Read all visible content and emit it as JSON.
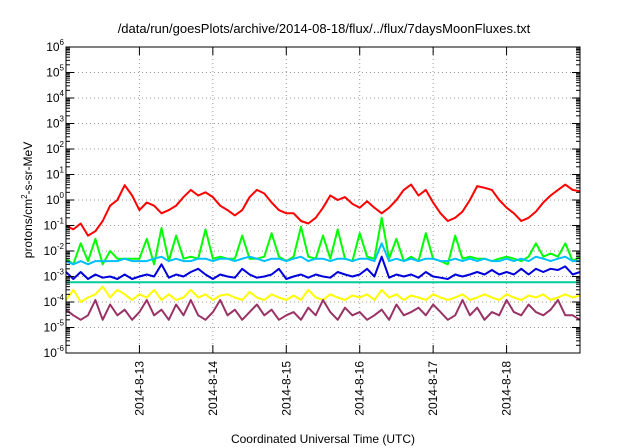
{
  "chart_data": {
    "type": "line",
    "title": "/data/run/goesPlots/archive/2014-08-18/flux/../flux/7daysMoonFluxes.txt",
    "xlabel": "Coordinated Universal Time (UTC)",
    "ylabel": {
      "pre": "protons/cm",
      "sup": "2",
      "post": "-s-sr-MeV"
    },
    "yscale": "log",
    "ylim_exp": [
      -6,
      6
    ],
    "y_tick_exponents": [
      -6,
      -5,
      -4,
      -3,
      -2,
      -1,
      0,
      1,
      2,
      3,
      4,
      5,
      6
    ],
    "y_tick_base": "10",
    "xlim": [
      0,
      7
    ],
    "x_ticks": [
      {
        "x": 1,
        "label": "2014-8-13"
      },
      {
        "x": 2,
        "label": "2014-8-14"
      },
      {
        "x": 3,
        "label": "2014-8-15"
      },
      {
        "x": 4,
        "label": "2014-8-16"
      },
      {
        "x": 5,
        "label": "2014-8-17"
      },
      {
        "x": 6,
        "label": "2014-8-18"
      }
    ],
    "grid": true,
    "series": [
      {
        "color": "#ff0000",
        "x": [
          0,
          0.1,
          0.2,
          0.3,
          0.4,
          0.5,
          0.6,
          0.7,
          0.8,
          0.9,
          1.0,
          1.1,
          1.2,
          1.3,
          1.4,
          1.5,
          1.6,
          1.7,
          1.8,
          1.9,
          2.0,
          2.1,
          2.2,
          2.3,
          2.4,
          2.5,
          2.6,
          2.7,
          2.8,
          2.9,
          3.0,
          3.1,
          3.2,
          3.3,
          3.4,
          3.5,
          3.6,
          3.7,
          3.8,
          3.9,
          4.0,
          4.1,
          4.2,
          4.3,
          4.4,
          4.5,
          4.6,
          4.7,
          4.8,
          4.9,
          5.0,
          5.1,
          5.2,
          5.3,
          5.4,
          5.5,
          5.6,
          5.7,
          5.8,
          5.9,
          6.0,
          6.1,
          6.2,
          6.3,
          6.4,
          6.5,
          6.6,
          6.7,
          6.8,
          6.9,
          7.0
        ],
        "values": [
          0.1,
          0.07,
          0.12,
          0.04,
          0.06,
          0.15,
          0.6,
          1.0,
          3.8,
          1.5,
          0.4,
          0.8,
          0.6,
          0.3,
          0.4,
          0.6,
          1.3,
          2.5,
          1.5,
          2.0,
          1.3,
          0.6,
          0.4,
          0.25,
          0.4,
          1.3,
          2.5,
          1.8,
          0.8,
          0.4,
          0.3,
          0.3,
          0.15,
          0.12,
          0.2,
          0.5,
          1.5,
          1.0,
          1.3,
          0.7,
          0.5,
          0.9,
          0.5,
          0.3,
          0.5,
          1.0,
          2.5,
          4.0,
          1.5,
          2.5,
          0.8,
          0.3,
          0.15,
          0.2,
          0.35,
          1.0,
          3.5,
          3.0,
          2.5,
          1.0,
          0.5,
          0.3,
          0.15,
          0.2,
          0.35,
          0.8,
          1.5,
          2.5,
          4.0,
          2.5,
          2.2
        ]
      },
      {
        "color": "#00ff00",
        "x": [
          0,
          0.1,
          0.2,
          0.3,
          0.4,
          0.5,
          0.6,
          0.7,
          0.8,
          0.9,
          1.0,
          1.1,
          1.2,
          1.3,
          1.4,
          1.5,
          1.6,
          1.7,
          1.8,
          1.9,
          2.0,
          2.1,
          2.2,
          2.3,
          2.4,
          2.5,
          2.6,
          2.7,
          2.8,
          2.9,
          3.0,
          3.1,
          3.2,
          3.3,
          3.4,
          3.5,
          3.6,
          3.7,
          3.8,
          3.9,
          4.0,
          4.1,
          4.2,
          4.3,
          4.4,
          4.5,
          4.6,
          4.7,
          4.8,
          4.9,
          5.0,
          5.1,
          5.2,
          5.3,
          5.4,
          5.5,
          5.6,
          5.7,
          5.8,
          5.9,
          6.0,
          6.1,
          6.2,
          6.3,
          6.4,
          6.5,
          6.6,
          6.7,
          6.8,
          6.9,
          7.0
        ],
        "values": [
          0.005,
          0.003,
          0.02,
          0.004,
          0.03,
          0.003,
          0.01,
          0.005,
          0.005,
          0.005,
          0.005,
          0.03,
          0.003,
          0.08,
          0.004,
          0.04,
          0.005,
          0.006,
          0.005,
          0.07,
          0.005,
          0.006,
          0.005,
          0.005,
          0.04,
          0.005,
          0.005,
          0.006,
          0.05,
          0.006,
          0.004,
          0.006,
          0.09,
          0.006,
          0.005,
          0.04,
          0.005,
          0.07,
          0.005,
          0.004,
          0.05,
          0.006,
          0.005,
          0.2,
          0.005,
          0.03,
          0.004,
          0.006,
          0.004,
          0.05,
          0.005,
          0.004,
          0.003,
          0.04,
          0.005,
          0.006,
          0.005,
          0.005,
          0.004,
          0.005,
          0.006,
          0.005,
          0.004,
          0.006,
          0.02,
          0.006,
          0.008,
          0.006,
          0.02,
          0.004,
          0.006
        ]
      },
      {
        "color": "#00bfff",
        "x": [
          0,
          0.1,
          0.2,
          0.3,
          0.4,
          0.5,
          0.6,
          0.7,
          0.8,
          0.9,
          1.0,
          1.1,
          1.2,
          1.3,
          1.4,
          1.5,
          1.6,
          1.7,
          1.8,
          1.9,
          2.0,
          2.1,
          2.2,
          2.3,
          2.4,
          2.5,
          2.6,
          2.7,
          2.8,
          2.9,
          3.0,
          3.1,
          3.2,
          3.3,
          3.4,
          3.5,
          3.6,
          3.7,
          3.8,
          3.9,
          4.0,
          4.1,
          4.2,
          4.3,
          4.4,
          4.5,
          4.6,
          4.7,
          4.8,
          4.9,
          5.0,
          5.1,
          5.2,
          5.3,
          5.4,
          5.5,
          5.6,
          5.7,
          5.8,
          5.9,
          6.0,
          6.1,
          6.2,
          6.3,
          6.4,
          6.5,
          6.6,
          6.7,
          6.8,
          6.9,
          7.0
        ],
        "values": [
          0.004,
          0.003,
          0.004,
          0.003,
          0.004,
          0.004,
          0.004,
          0.004,
          0.005,
          0.004,
          0.004,
          0.004,
          0.005,
          0.006,
          0.004,
          0.005,
          0.004,
          0.004,
          0.005,
          0.005,
          0.004,
          0.005,
          0.005,
          0.004,
          0.005,
          0.006,
          0.005,
          0.004,
          0.005,
          0.005,
          0.004,
          0.005,
          0.006,
          0.004,
          0.005,
          0.005,
          0.004,
          0.005,
          0.005,
          0.004,
          0.005,
          0.005,
          0.004,
          0.02,
          0.004,
          0.005,
          0.004,
          0.005,
          0.004,
          0.005,
          0.005,
          0.004,
          0.004,
          0.005,
          0.004,
          0.005,
          0.004,
          0.005,
          0.004,
          0.004,
          0.005,
          0.004,
          0.005,
          0.004,
          0.006,
          0.005,
          0.004,
          0.005,
          0.006,
          0.004,
          0.004
        ]
      },
      {
        "color": "#0000dd",
        "x": [
          0,
          0.1,
          0.2,
          0.3,
          0.4,
          0.5,
          0.6,
          0.7,
          0.8,
          0.9,
          1.0,
          1.1,
          1.2,
          1.3,
          1.4,
          1.5,
          1.6,
          1.7,
          1.8,
          1.9,
          2.0,
          2.1,
          2.2,
          2.3,
          2.4,
          2.5,
          2.6,
          2.7,
          2.8,
          2.9,
          3.0,
          3.1,
          3.2,
          3.3,
          3.4,
          3.5,
          3.6,
          3.7,
          3.8,
          3.9,
          4.0,
          4.1,
          4.2,
          4.3,
          4.4,
          4.5,
          4.6,
          4.7,
          4.8,
          4.9,
          5.0,
          5.1,
          5.2,
          5.3,
          5.4,
          5.5,
          5.6,
          5.7,
          5.8,
          5.9,
          6.0,
          6.1,
          6.2,
          6.3,
          6.4,
          6.5,
          6.6,
          6.7,
          6.8,
          6.9,
          7.0
        ],
        "values": [
          0.0015,
          0.0008,
          0.0015,
          0.0008,
          0.0012,
          0.0009,
          0.001,
          0.0008,
          0.0012,
          0.0008,
          0.001,
          0.0012,
          0.001,
          0.003,
          0.0009,
          0.0012,
          0.001,
          0.0015,
          0.002,
          0.0012,
          0.0008,
          0.0012,
          0.001,
          0.0009,
          0.002,
          0.0012,
          0.0009,
          0.001,
          0.0012,
          0.002,
          0.0008,
          0.001,
          0.0012,
          0.0009,
          0.0012,
          0.001,
          0.0009,
          0.0015,
          0.0012,
          0.001,
          0.0012,
          0.002,
          0.001,
          0.006,
          0.0009,
          0.0012,
          0.001,
          0.0012,
          0.0009,
          0.0015,
          0.001,
          0.0009,
          0.0008,
          0.0012,
          0.001,
          0.0012,
          0.0015,
          0.0012,
          0.0018,
          0.0012,
          0.0015,
          0.0012,
          0.002,
          0.0012,
          0.002,
          0.0015,
          0.002,
          0.0018,
          0.0025,
          0.0012,
          0.0015
        ]
      },
      {
        "color": "#00cc99",
        "x": [
          0,
          0.5,
          1,
          1.5,
          2,
          2.5,
          3,
          3.5,
          4,
          4.5,
          5,
          5.5,
          6,
          6.5,
          7
        ],
        "values": [
          0.0006,
          0.0006,
          0.0006,
          0.0006,
          0.0006,
          0.0006,
          0.0006,
          0.0006,
          0.0006,
          0.0006,
          0.0006,
          0.0006,
          0.0006,
          0.0006,
          0.0006
        ]
      },
      {
        "color": "#ffff00",
        "x": [
          0,
          0.1,
          0.2,
          0.3,
          0.4,
          0.5,
          0.6,
          0.7,
          0.8,
          0.9,
          1.0,
          1.1,
          1.2,
          1.3,
          1.4,
          1.5,
          1.6,
          1.7,
          1.8,
          1.9,
          2.0,
          2.1,
          2.2,
          2.3,
          2.4,
          2.5,
          2.6,
          2.7,
          2.8,
          2.9,
          3.0,
          3.1,
          3.2,
          3.3,
          3.4,
          3.5,
          3.6,
          3.7,
          3.8,
          3.9,
          4.0,
          4.1,
          4.2,
          4.3,
          4.4,
          4.5,
          4.6,
          4.7,
          4.8,
          4.9,
          5.0,
          5.1,
          5.2,
          5.3,
          5.4,
          5.5,
          5.6,
          5.7,
          5.8,
          5.9,
          6.0,
          6.1,
          6.2,
          6.3,
          6.4,
          6.5,
          6.6,
          6.7,
          6.8,
          6.9,
          7.0
        ],
        "values": [
          0.00012,
          0.0003,
          0.0001,
          0.00015,
          0.0002,
          0.0004,
          0.00015,
          0.0003,
          0.0002,
          0.00012,
          0.0002,
          0.00015,
          0.0003,
          0.00012,
          0.0002,
          0.00012,
          0.00015,
          0.0003,
          0.00015,
          0.0002,
          0.00012,
          0.00018,
          0.0002,
          0.00015,
          0.00012,
          0.00025,
          0.00015,
          0.00012,
          0.0002,
          0.00015,
          0.00012,
          0.00018,
          0.00012,
          0.0003,
          0.00015,
          0.00012,
          0.0002,
          0.00015,
          0.00012,
          0.00018,
          0.00015,
          0.0002,
          0.00012,
          0.0003,
          0.00015,
          0.0002,
          0.00012,
          0.00018,
          0.00015,
          0.00012,
          0.0002,
          0.00015,
          0.00012,
          0.00015,
          0.0002,
          0.00012,
          0.00015,
          0.0002,
          0.00015,
          0.00012,
          0.0002,
          0.00015,
          0.00012,
          0.00018,
          0.00015,
          0.0002,
          0.00012,
          0.00015,
          0.0002,
          0.00015,
          0.00018
        ]
      },
      {
        "color": "#993366",
        "x": [
          0,
          0.1,
          0.2,
          0.3,
          0.4,
          0.5,
          0.6,
          0.7,
          0.8,
          0.9,
          1.0,
          1.1,
          1.2,
          1.3,
          1.4,
          1.5,
          1.6,
          1.7,
          1.8,
          1.9,
          2.0,
          2.1,
          2.2,
          2.3,
          2.4,
          2.5,
          2.6,
          2.7,
          2.8,
          2.9,
          3.0,
          3.1,
          3.2,
          3.3,
          3.4,
          3.5,
          3.6,
          3.7,
          3.8,
          3.9,
          4.0,
          4.1,
          4.2,
          4.3,
          4.4,
          4.5,
          4.6,
          4.7,
          4.8,
          4.9,
          5.0,
          5.1,
          5.2,
          5.3,
          5.4,
          5.5,
          5.6,
          5.7,
          5.8,
          5.9,
          6.0,
          6.1,
          6.2,
          6.3,
          6.4,
          6.5,
          6.6,
          6.7,
          6.8,
          6.9,
          7.0
        ],
        "values": [
          5e-05,
          3e-05,
          2e-05,
          3e-05,
          0.00012,
          2e-05,
          8e-05,
          3e-05,
          5e-05,
          2e-05,
          4e-05,
          0.00012,
          3e-05,
          5e-05,
          2e-05,
          8e-05,
          3e-05,
          0.00012,
          3e-05,
          2e-05,
          4e-05,
          0.00012,
          3e-05,
          5e-05,
          2e-05,
          4e-05,
          8e-05,
          3e-05,
          5e-05,
          2e-05,
          3e-05,
          4e-05,
          2e-05,
          6e-05,
          3e-05,
          0.00012,
          4e-05,
          2e-05,
          6e-05,
          3e-05,
          4e-05,
          2e-05,
          3e-05,
          5e-05,
          2e-05,
          8e-05,
          3e-05,
          4e-05,
          6e-05,
          3e-05,
          8e-05,
          4e-05,
          2e-05,
          3e-05,
          0.00012,
          3e-05,
          6e-05,
          2e-05,
          4e-05,
          3e-05,
          0.00012,
          4e-05,
          3e-05,
          8e-05,
          4e-05,
          3e-05,
          5e-05,
          0.00012,
          3e-05,
          3e-05,
          2e-05
        ]
      }
    ]
  }
}
